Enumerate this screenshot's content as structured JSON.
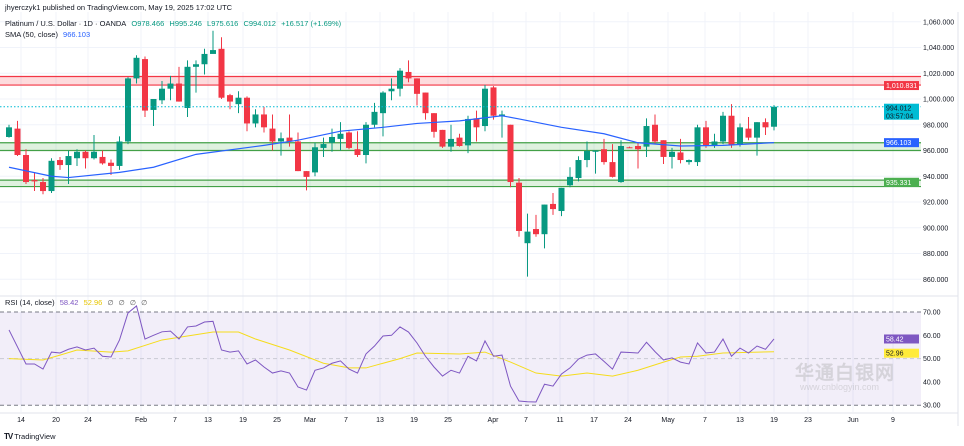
{
  "header": {
    "publisher": "jhyerczyk1 published on TradingView.com, May 19, 2025 17:02 UTC",
    "symbol": "Platinum / U.S. Dollar · 1D · OANDA",
    "open": "O978.466",
    "high": "H995.246",
    "low": "L975.616",
    "close": "C994.012",
    "change": "+16.517 (+1.69%)",
    "sma_label": "SMA (50, close)",
    "sma_value": "966.103",
    "rsi_label": "RSI (14, close)",
    "rsi_value": "58.42",
    "rsi_ma_value": "52.96",
    "hidden_value_icons": [
      "∅",
      "∅",
      "∅",
      "∅"
    ]
  },
  "branding": {
    "logo_text": "TradingView",
    "watermark": "华通白银网",
    "watermark_url": "www.cnblogyin.com"
  },
  "colors": {
    "up": "#089981",
    "down": "#f23645",
    "sma": "#2962ff",
    "rsi": "#7e57c2",
    "rsi_ma": "#f5dc1c",
    "resistance": "#f23645",
    "support": "#43a047",
    "last_price": "#00bcd4"
  },
  "chart_data": [
    {
      "type": "candlestick",
      "title": "Platinum / U.S. Dollar · 1D · OANDA",
      "ylim": [
        850,
        1065
      ],
      "grid": true,
      "y_ticks": [
        "1,060.000",
        "1,040.000",
        "1,020.000",
        "1,000.000",
        "980.000",
        "960.000",
        "940.000",
        "920.000",
        "900.000",
        "880.000",
        "860.000"
      ],
      "y_tick_values": [
        1060,
        1040,
        1020,
        1000,
        980,
        960,
        940,
        920,
        900,
        880,
        860
      ],
      "x_ticks": [
        "14",
        "20",
        "24",
        "Feb",
        "7",
        "13",
        "19",
        "25",
        "Mar",
        "7",
        "13",
        "19",
        "25",
        "Apr",
        "7",
        "11",
        "17",
        "24",
        "May",
        "7",
        "13",
        "19",
        "23",
        "Jun",
        "9"
      ],
      "ohlc": [
        [
          970.5,
          980,
          970,
          978
        ],
        [
          977,
          983,
          955.7,
          956.5
        ],
        [
          956.5,
          961,
          934,
          935.5
        ],
        [
          937,
          943,
          928.5,
          936
        ],
        [
          935.5,
          938.6,
          926,
          928.5
        ],
        [
          928.5,
          954,
          927,
          952
        ],
        [
          952.6,
          955,
          945,
          948.7
        ],
        [
          948.7,
          960,
          934,
          955.7
        ],
        [
          954,
          961,
          948,
          959
        ],
        [
          959,
          960,
          946,
          954
        ],
        [
          954,
          972,
          953,
          959
        ],
        [
          955,
          960,
          949,
          950
        ],
        [
          950.5,
          953,
          941,
          948
        ],
        [
          948,
          971,
          945,
          967
        ],
        [
          967,
          1017,
          965,
          1016
        ],
        [
          1016,
          1034,
          1012,
          1032
        ],
        [
          1031,
          1033,
          986,
          991
        ],
        [
          991.5,
          1000,
          979,
          1000
        ],
        [
          999,
          1014,
          996,
          1008
        ],
        [
          1008,
          1018,
          999,
          1012
        ],
        [
          1012,
          1025,
          998,
          998
        ],
        [
          993,
          1030,
          986,
          1025
        ],
        [
          1025,
          1030,
          1005,
          1027
        ],
        [
          1027,
          1039,
          1019,
          1035
        ],
        [
          1035,
          1053,
          1036,
          1038
        ],
        [
          1039,
          1048,
          1000,
          1001
        ],
        [
          1003,
          1004,
          992,
          998
        ],
        [
          996,
          1006,
          989,
          1001
        ],
        [
          1001,
          1002,
          975,
          981
        ],
        [
          981,
          992,
          978,
          988
        ],
        [
          988,
          994,
          974,
          978
        ],
        [
          977,
          988,
          960,
          967
        ],
        [
          967,
          974,
          956,
          969.5
        ],
        [
          970,
          988,
          963,
          967
        ],
        [
          967,
          974,
          944,
          944
        ],
        [
          944,
          944,
          929,
          939.5
        ],
        [
          943,
          966,
          940,
          962.5
        ],
        [
          962,
          970,
          955,
          965
        ],
        [
          966,
          977,
          959,
          970.5
        ],
        [
          969,
          982,
          960,
          973
        ],
        [
          974,
          975,
          961,
          962
        ],
        [
          961,
          975,
          955,
          956.5
        ],
        [
          956.5,
          982,
          950,
          980
        ],
        [
          980,
          997,
          978,
          990
        ],
        [
          989,
          1006,
          971,
          1005
        ],
        [
          1006,
          1016,
          999,
          1008
        ],
        [
          1008,
          1024,
          1002,
          1022
        ],
        [
          1021,
          1030,
          1013,
          1016
        ],
        [
          1016,
          1016,
          995,
          1004
        ],
        [
          1005,
          1005,
          984,
          989
        ],
        [
          989,
          989,
          970,
          974.5
        ],
        [
          976,
          976,
          962,
          963
        ],
        [
          963,
          980,
          959,
          969
        ],
        [
          970,
          973,
          963,
          963.5
        ],
        [
          964,
          987,
          958,
          984.5
        ],
        [
          985,
          991,
          967,
          978
        ],
        [
          979,
          1011,
          975,
          1008
        ],
        [
          1009,
          1010,
          984,
          987
        ],
        [
          987,
          991,
          970,
          988
        ],
        [
          980,
          980,
          931.5,
          935.5
        ],
        [
          935,
          938.6,
          893,
          897.5
        ],
        [
          888,
          911,
          862,
          897
        ],
        [
          899,
          910,
          893,
          895
        ],
        [
          895,
          918,
          884,
          918
        ],
        [
          918.5,
          927,
          910,
          914.5
        ],
        [
          913,
          931,
          909,
          931
        ],
        [
          933,
          947,
          931.5,
          939.5
        ],
        [
          938.6,
          955.5,
          936,
          952.6
        ],
        [
          952.6,
          967,
          947,
          959.6
        ],
        [
          959,
          960,
          942,
          960
        ],
        [
          961,
          969,
          949,
          951
        ],
        [
          951,
          965,
          939,
          939.5
        ],
        [
          935.5,
          968,
          935,
          963.5
        ],
        [
          962.5,
          963,
          962,
          962
        ],
        [
          963.5,
          966,
          946,
          961
        ],
        [
          963,
          985,
          955,
          979
        ],
        [
          980,
          988,
          965,
          967
        ],
        [
          968,
          968,
          949.5,
          955
        ],
        [
          955,
          962,
          946,
          959
        ],
        [
          958.5,
          969,
          950,
          952.6
        ],
        [
          951,
          953,
          949,
          952.6
        ],
        [
          951,
          980,
          948,
          978
        ],
        [
          978,
          983,
          962,
          964
        ],
        [
          963.5,
          973,
          962,
          967
        ],
        [
          967,
          990,
          965,
          987
        ],
        [
          987,
          996,
          962,
          964
        ],
        [
          965,
          981,
          963,
          978
        ],
        [
          977,
          986,
          968,
          970
        ],
        [
          970,
          982,
          956,
          982
        ],
        [
          982,
          985,
          972,
          978
        ],
        [
          978.466,
          995.246,
          975.616,
          994.012
        ]
      ],
      "sma_50": {
        "name": "SMA (50, close)",
        "points": [
          [
            0,
            947
          ],
          [
            5,
            940
          ],
          [
            7,
            939
          ],
          [
            13,
            943
          ],
          [
            17,
            947
          ],
          [
            22,
            957
          ],
          [
            30,
            964
          ],
          [
            34,
            968
          ],
          [
            39,
            975
          ],
          [
            44,
            978
          ],
          [
            48,
            981
          ],
          [
            53,
            983
          ],
          [
            58,
            987
          ],
          [
            60,
            984.5
          ],
          [
            65,
            978
          ],
          [
            70,
            973
          ],
          [
            74,
            966
          ],
          [
            79,
            963.5
          ],
          [
            84,
            964
          ],
          [
            90,
            966.103
          ]
        ]
      },
      "levels": [
        {
          "kind": "resistance-zone",
          "low": 1010.831,
          "high": 1017.5,
          "label": "1,010.831"
        },
        {
          "kind": "support-zone",
          "low": 960,
          "high": 966,
          "label": ""
        },
        {
          "kind": "support-zone",
          "low": 932,
          "high": 937,
          "label": "935.331"
        }
      ],
      "last_price": {
        "value": 994.012,
        "label": "994.012",
        "countdown": "03:57:04"
      },
      "sma_label": "966.103"
    },
    {
      "type": "line",
      "title": "RSI (14, close)",
      "ylim": [
        27,
        73
      ],
      "y_ticks": [
        "70.00",
        "60.00",
        "50.00",
        "40.00",
        "30.00"
      ],
      "y_tick_values": [
        70,
        60,
        50,
        40,
        30
      ],
      "bands": [
        30,
        50,
        70
      ],
      "series": [
        {
          "name": "RSI (14, close)",
          "values": [
            62.3,
            55,
            47.7,
            47.7,
            45.5,
            52.8,
            52.4,
            54,
            55,
            53.7,
            54.5,
            51,
            50.7,
            58,
            69.6,
            72.6,
            58.4,
            60,
            61.5,
            61.8,
            58.4,
            63.6,
            64,
            65.7,
            66,
            53.7,
            52.8,
            53.3,
            47.7,
            49.4,
            46.4,
            43.8,
            44.7,
            43.8,
            37.8,
            36.5,
            45,
            46,
            48,
            49,
            45.5,
            43.8,
            52,
            55.4,
            59.7,
            60,
            63.6,
            61.4,
            56.7,
            51,
            46.4,
            42.5,
            45,
            43.8,
            51,
            49,
            57.6,
            51,
            51.5,
            38.2,
            31.8,
            31.5,
            31.4,
            39,
            38.2,
            43.4,
            46,
            49.8,
            51.5,
            52,
            48.8,
            45.5,
            52.8,
            52.6,
            52.4,
            57,
            53,
            49.4,
            50.3,
            48.5,
            47.7,
            56.7,
            52.4,
            52.8,
            58.4,
            51,
            54.5,
            52.4,
            55.4,
            54,
            58.42
          ]
        },
        {
          "name": "RSI-based MA",
          "points": [
            [
              0,
              50
            ],
            [
              4,
              49.4
            ],
            [
              6,
              51.5
            ],
            [
              8,
              53.7
            ],
            [
              12,
              52.8
            ],
            [
              14,
              53.3
            ],
            [
              18,
              58
            ],
            [
              24,
              61.4
            ],
            [
              27,
              61.4
            ],
            [
              29,
              58.4
            ],
            [
              33,
              53.7
            ],
            [
              37,
              48
            ],
            [
              40,
              46
            ],
            [
              42,
              46
            ],
            [
              46,
              50
            ],
            [
              48,
              52.4
            ],
            [
              53,
              52
            ],
            [
              56,
              52.8
            ],
            [
              59,
              48.5
            ],
            [
              62,
              43.8
            ],
            [
              65,
              42.5
            ],
            [
              68,
              43.8
            ],
            [
              71,
              42.5
            ],
            [
              74,
              45
            ],
            [
              77,
              48.5
            ],
            [
              79,
              50.7
            ],
            [
              81,
              51
            ],
            [
              84,
              52.4
            ],
            [
              90,
              52.96
            ]
          ]
        }
      ],
      "last_labels": [
        "58.42",
        "52.96"
      ]
    }
  ]
}
